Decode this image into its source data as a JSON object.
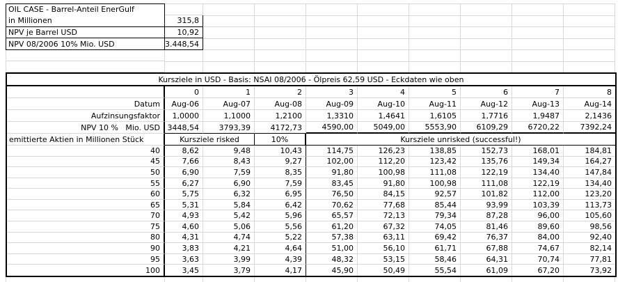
{
  "colors": {
    "background": "#ffffff",
    "grid_line": "#d8d8d8",
    "border": "#000000",
    "text": "#000000"
  },
  "summary_table": {
    "rows": [
      {
        "label": "OIL CASE - Barrel-Anteil EnerGulf",
        "value": ""
      },
      {
        "label": "in Millionen",
        "value": "315,8"
      },
      {
        "label": "NPV je Barrel USD",
        "value": "10,92"
      },
      {
        "label": "NPV 08/2006 10% Mio. USD",
        "value": "3.448,54"
      }
    ]
  },
  "price_table": {
    "title": "Kursziele in USD - Basis: NSAI 08/2006 - Ölpreis 62,59 USD - Eckdaten wie oben",
    "period_row": {
      "label": "",
      "values": [
        "0",
        "1",
        "2",
        "3",
        "4",
        "5",
        "6",
        "7",
        "8"
      ]
    },
    "datum_row": {
      "label": "Datum",
      "values": [
        "Aug-06",
        "Aug-07",
        "Aug-08",
        "Aug-09",
        "Aug-10",
        "Aug-11",
        "Aug-12",
        "Aug-13",
        "Aug-14"
      ]
    },
    "aufzinsungsfaktor_row": {
      "label": "Aufzinsungsfaktor",
      "values": [
        "1,0000",
        "1,1000",
        "1,2100",
        "1,3310",
        "1,4641",
        "1,6105",
        "1,7716",
        "1,9487",
        "2,1436"
      ]
    },
    "npv_row": {
      "label": "NPV 10 %   Mio. USD",
      "values": [
        "3448,54",
        "3793,39",
        "4172,73",
        "4590,00",
        "5049,00",
        "5553,90",
        "6109,29",
        "6720,22",
        "7392,24"
      ]
    },
    "section_row": {
      "label": "emittierte Aktien in Millionen Stück",
      "risked": "Kursziele risked",
      "discount": "10%",
      "unrisked": "Kursziele unrisked (successful!)"
    },
    "share_rows": [
      {
        "aktien": "40",
        "risked": [
          "8,62",
          "9,48",
          "10,43"
        ],
        "unrisked": [
          "114,75",
          "126,23",
          "138,85",
          "152,73",
          "168,01",
          "184,81"
        ]
      },
      {
        "aktien": "45",
        "risked": [
          "7,66",
          "8,43",
          "9,27"
        ],
        "unrisked": [
          "102,00",
          "112,20",
          "123,42",
          "135,76",
          "149,34",
          "164,27"
        ]
      },
      {
        "aktien": "50",
        "risked": [
          "6,90",
          "7,59",
          "8,35"
        ],
        "unrisked": [
          "91,80",
          "100,98",
          "111,08",
          "122,19",
          "134,40",
          "147,84"
        ]
      },
      {
        "aktien": "55",
        "risked": [
          "6,27",
          "6,90",
          "7,59"
        ],
        "unrisked": [
          "83,45",
          "91,80",
          "100,98",
          "111,08",
          "122,19",
          "134,40"
        ]
      },
      {
        "aktien": "60",
        "risked": [
          "5,75",
          "6,32",
          "6,95"
        ],
        "unrisked": [
          "76,50",
          "84,15",
          "92,57",
          "101,82",
          "112,00",
          "123,20"
        ]
      },
      {
        "aktien": "65",
        "risked": [
          "5,31",
          "5,84",
          "6,42"
        ],
        "unrisked": [
          "70,62",
          "77,68",
          "85,44",
          "93,99",
          "103,39",
          "113,73"
        ]
      },
      {
        "aktien": "70",
        "risked": [
          "4,93",
          "5,42",
          "5,96"
        ],
        "unrisked": [
          "65,57",
          "72,13",
          "79,34",
          "87,28",
          "96,00",
          "105,60"
        ]
      },
      {
        "aktien": "75",
        "risked": [
          "4,60",
          "5,06",
          "5,56"
        ],
        "unrisked": [
          "61,20",
          "67,32",
          "74,05",
          "81,46",
          "89,60",
          "98,56"
        ]
      },
      {
        "aktien": "80",
        "risked": [
          "4,31",
          "4,74",
          "5,22"
        ],
        "unrisked": [
          "57,38",
          "63,11",
          "69,42",
          "76,37",
          "84,00",
          "92,40"
        ]
      },
      {
        "aktien": "90",
        "risked": [
          "3,83",
          "4,21",
          "4,64"
        ],
        "unrisked": [
          "51,00",
          "56,10",
          "61,71",
          "67,88",
          "74,67",
          "82,14"
        ]
      },
      {
        "aktien": "95",
        "risked": [
          "3,63",
          "3,99",
          "4,39"
        ],
        "unrisked": [
          "48,32",
          "53,15",
          "58,46",
          "64,31",
          "70,74",
          "77,81"
        ]
      },
      {
        "aktien": "100",
        "risked": [
          "3,45",
          "3,79",
          "4,17"
        ],
        "unrisked": [
          "45,90",
          "50,49",
          "55,54",
          "61,09",
          "67,20",
          "73,92"
        ]
      }
    ]
  }
}
